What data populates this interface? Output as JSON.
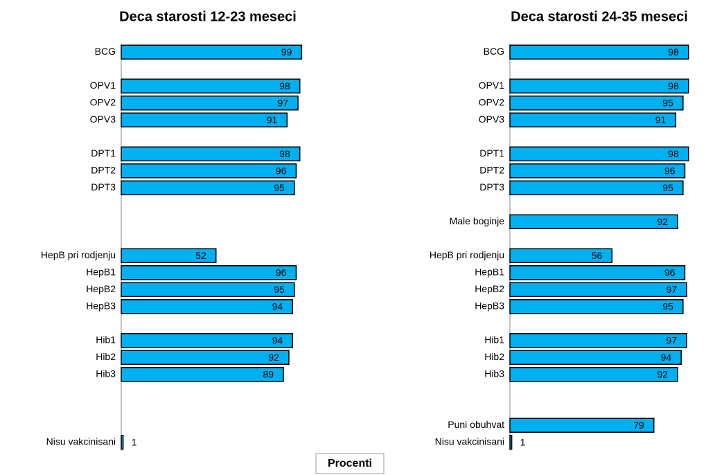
{
  "chart_data": [
    {
      "type": "bar",
      "orientation": "horizontal",
      "title": "Deca starosti 12-23 meseci",
      "color": "#00b0f0",
      "categories": [
        "BCG",
        null,
        "OPV1",
        "OPV2",
        "OPV3",
        null,
        "DPT1",
        "DPT2",
        "DPT3",
        null,
        null,
        null,
        "HepB pri rodjenju",
        "HepB1",
        "HepB2",
        "HepB3",
        null,
        "Hib1",
        "Hib2",
        "Hib3",
        null,
        null,
        null,
        "Nisu vakcinisani"
      ],
      "values": [
        99,
        null,
        98,
        97,
        91,
        null,
        98,
        96,
        95,
        null,
        null,
        null,
        52,
        96,
        95,
        94,
        null,
        94,
        92,
        89,
        null,
        null,
        null,
        1
      ],
      "xlim": [
        0,
        100
      ]
    },
    {
      "type": "bar",
      "orientation": "horizontal",
      "title": "Deca starosti 24-35 meseci",
      "color": "#00b0f0",
      "categories": [
        "BCG",
        null,
        "OPV1",
        "OPV2",
        "OPV3",
        null,
        "DPT1",
        "DPT2",
        "DPT3",
        null,
        "Male boginje",
        null,
        "HepB pri rodjenju",
        "HepB1",
        "HepB2",
        "HepB3",
        null,
        "Hib1",
        "Hib2",
        "Hib3",
        null,
        null,
        "Puni obuhvat",
        "Nisu vakcinisani"
      ],
      "values": [
        98,
        null,
        98,
        95,
        91,
        null,
        98,
        96,
        95,
        null,
        92,
        null,
        56,
        96,
        97,
        95,
        null,
        97,
        94,
        92,
        null,
        null,
        79,
        1
      ],
      "xlim": [
        0,
        100
      ]
    }
  ],
  "xlabel": "Procenti"
}
